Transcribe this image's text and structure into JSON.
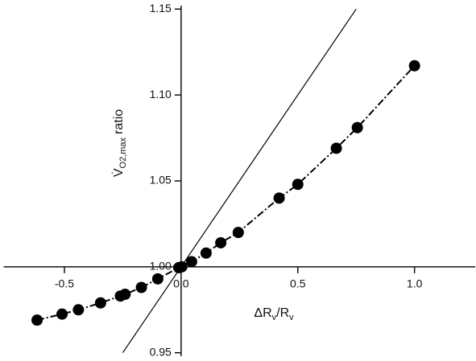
{
  "chart_data": {
    "type": "line",
    "xlabel": {
      "main": "ΔR",
      "sub": "v",
      "mid": "/R",
      "sub2": "v"
    },
    "ylabel": {
      "main": "V̇",
      "sub": "O2,max",
      "rest": "ratio"
    },
    "xlim": [
      -0.76,
      1.26
    ],
    "ylim": [
      0.948,
      1.152
    ],
    "xticks": [
      -0.5,
      {
        "value": 0,
        "label": "0.0"
      },
      0.5,
      {
        "value": 1,
        "label": "1.0"
      }
    ],
    "yticks": [
      0.95,
      {
        "value": 1,
        "label": "1.00"
      },
      1.05,
      {
        "value": 1.1,
        "label": "1.10"
      },
      1.15
    ],
    "series": [
      {
        "color": "#000000",
        "markers": true,
        "x": [
          -0.617,
          -0.51,
          -0.44,
          -0.345,
          -0.26,
          -0.24,
          -0.17,
          -0.1,
          -0.01,
          0.003,
          0.045,
          0.107,
          0.17,
          0.245,
          0.42,
          0.5,
          0.665,
          0.755,
          1.0
        ],
        "values": [
          0.969,
          0.9725,
          0.975,
          0.979,
          0.983,
          0.984,
          0.988,
          0.993,
          0.9995,
          1.0,
          1.003,
          1.008,
          1.014,
          1.02,
          1.04,
          1.048,
          1.069,
          1.081,
          1.117
        ]
      },
      {
        "color": "#000000",
        "markers": false,
        "x": [
          -0.25,
          0.75
        ],
        "values": [
          0.95,
          1.15
        ]
      }
    ]
  }
}
